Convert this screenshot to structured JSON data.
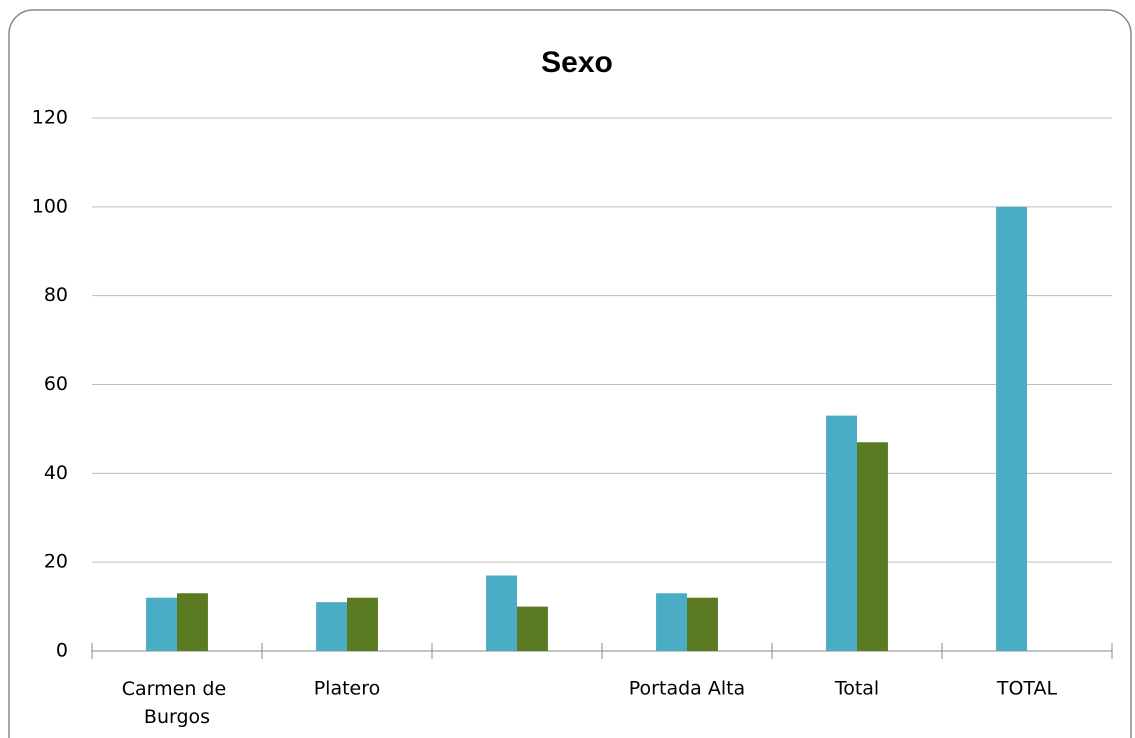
{
  "chart_data": {
    "type": "bar",
    "title": "Sexo",
    "categories": [
      "Carmen de Burgos",
      "Platero",
      null,
      "Portada Alta",
      "Total",
      "TOTAL"
    ],
    "series": [
      {
        "color": "#4bacc6",
        "values": [
          12,
          11,
          17,
          13,
          53,
          100
        ]
      },
      {
        "color": "#5b7b22",
        "values": [
          13,
          12,
          10,
          12,
          47,
          null
        ]
      }
    ],
    "ylim": [
      0,
      120
    ],
    "yticks": [
      0,
      20,
      40,
      60,
      80,
      100,
      120
    ],
    "grid": true
  }
}
